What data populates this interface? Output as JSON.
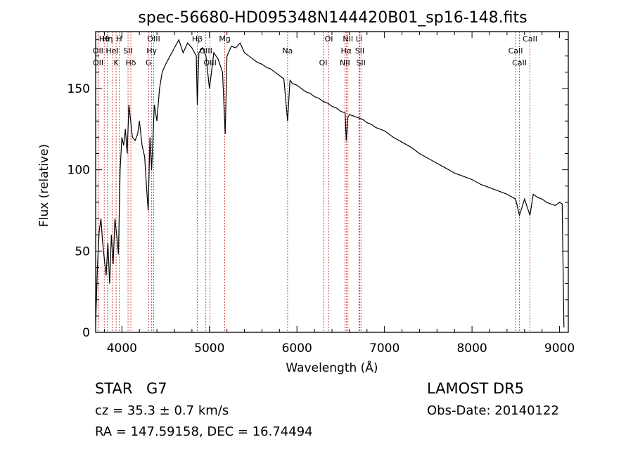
{
  "chart_data": {
    "type": "line",
    "title": "spec-56680-HD095348N144420B01_sp16-148.fits",
    "xlabel": "Wavelength (Å)",
    "ylabel": "Flux (relative)",
    "xlim": [
      3700,
      9100
    ],
    "ylim": [
      0,
      185
    ],
    "x_ticks": [
      4000,
      5000,
      6000,
      7000,
      8000,
      9000
    ],
    "y_ticks": [
      0,
      50,
      100,
      150
    ],
    "grid": false,
    "series": [
      {
        "x": [
          3700,
          3720,
          3740,
          3760,
          3780,
          3800,
          3820,
          3840,
          3860,
          3880,
          3900,
          3920,
          3940,
          3960,
          3980,
          4000,
          4020,
          4040,
          4060,
          4080,
          4100,
          4120,
          4150,
          4180,
          4200,
          4230,
          4260,
          4280,
          4300,
          4320,
          4340,
          4370,
          4400,
          4430,
          4460,
          4500,
          4550,
          4600,
          4650,
          4700,
          4750,
          4800,
          4850,
          4861,
          4880,
          4920,
          4960,
          5000,
          5050,
          5100,
          5150,
          5180,
          5200,
          5250,
          5300,
          5350,
          5400,
          5450,
          5500,
          5550,
          5600,
          5650,
          5700,
          5750,
          5800,
          5850,
          5893,
          5920,
          5950,
          6000,
          6050,
          6100,
          6150,
          6200,
          6250,
          6300,
          6350,
          6400,
          6450,
          6500,
          6550,
          6563,
          6580,
          6600,
          6650,
          6700,
          6750,
          6800,
          6850,
          6900,
          6950,
          7000,
          7100,
          7200,
          7300,
          7400,
          7500,
          7600,
          7700,
          7800,
          7900,
          8000,
          8100,
          8200,
          8300,
          8400,
          8498,
          8542,
          8600,
          8662,
          8700,
          8750,
          8800,
          8850,
          8900,
          8950,
          9000,
          9030,
          9050
        ],
        "y": [
          5,
          40,
          62,
          70,
          55,
          45,
          35,
          55,
          30,
          60,
          42,
          70,
          60,
          48,
          100,
          120,
          115,
          125,
          110,
          140,
          130,
          120,
          118,
          122,
          130,
          115,
          108,
          90,
          75,
          120,
          100,
          140,
          130,
          150,
          160,
          165,
          170,
          175,
          180,
          172,
          178,
          175,
          170,
          140,
          172,
          175,
          170,
          150,
          172,
          168,
          160,
          122,
          170,
          176,
          175,
          178,
          172,
          170,
          168,
          166,
          165,
          163,
          162,
          160,
          158,
          156,
          130,
          155,
          153,
          152,
          150,
          148,
          147,
          145,
          144,
          142,
          141,
          139,
          138,
          136,
          135,
          118,
          132,
          134,
          133,
          132,
          131,
          129,
          128,
          126,
          125,
          124,
          120,
          117,
          114,
          110,
          107,
          104,
          101,
          98,
          96,
          94,
          91,
          89,
          87,
          85,
          82,
          72,
          82,
          72,
          85,
          83,
          82,
          80,
          79,
          78,
          80,
          79,
          3
        ]
      }
    ],
    "spectral_lines": [
      {
        "name": "Hθ",
        "wavelength": 3798
      },
      {
        "name": "OII",
        "wavelength": 3727
      },
      {
        "name": "OII",
        "wavelength": 3729
      },
      {
        "name": "Hη",
        "wavelength": 3835
      },
      {
        "name": "HeI",
        "wavelength": 3889
      },
      {
        "name": "K",
        "wavelength": 3934
      },
      {
        "name": "H",
        "wavelength": 3969
      },
      {
        "name": "SII",
        "wavelength": 4070
      },
      {
        "name": "Hδ",
        "wavelength": 4102
      },
      {
        "name": "OIII",
        "wavelength": 4363
      },
      {
        "name": "Hγ",
        "wavelength": 4340
      },
      {
        "name": "G",
        "wavelength": 4305
      },
      {
        "name": "Hβ",
        "wavelength": 4861
      },
      {
        "name": "OIII",
        "wavelength": 4959
      },
      {
        "name": "OIII",
        "wavelength": 5007
      },
      {
        "name": "Mg",
        "wavelength": 5175
      },
      {
        "name": "Na",
        "wavelength": 5893
      },
      {
        "name": "OI",
        "wavelength": 6300
      },
      {
        "name": "OI",
        "wavelength": 6364
      },
      {
        "name": "Hα",
        "wavelength": 6563
      },
      {
        "name": "NII",
        "wavelength": 6548
      },
      {
        "name": "NII",
        "wavelength": 6583
      },
      {
        "name": "SII",
        "wavelength": 6717
      },
      {
        "name": "SII",
        "wavelength": 6731
      },
      {
        "name": "Li",
        "wavelength": 6708
      },
      {
        "name": "CaII",
        "wavelength": 8498
      },
      {
        "name": "CaII",
        "wavelength": 8542
      },
      {
        "name": "CaII",
        "wavelength": 8662
      }
    ]
  },
  "info": {
    "object_class": "STAR",
    "subclass": "G7",
    "redshift": "cz = 35.3 ± 0.7 km/s",
    "coords": "RA = 147.59158, DEC =  16.74494",
    "survey": "LAMOST DR5",
    "obs_date": "Obs-Date: 20140122"
  }
}
